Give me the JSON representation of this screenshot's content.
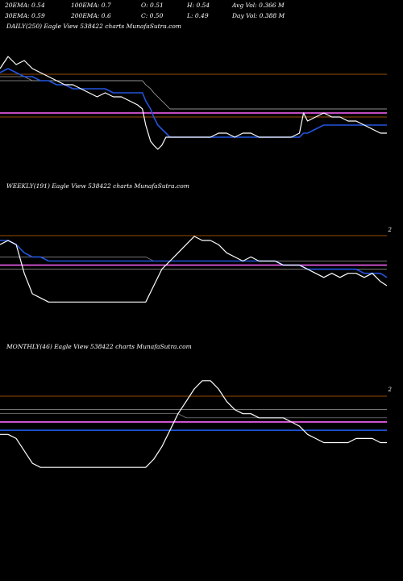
{
  "header": {
    "row1": [
      "20EMA: 0.54",
      "100EMA: 0.7",
      "O: 0.51",
      "H: 0.54",
      "Avg Vol: 0.366  M"
    ],
    "row2": [
      "30EMA: 0.59",
      "200EMA: 0.6",
      "C: 0.50",
      "L: 0.49",
      "Day Vol: 0.388  M"
    ]
  },
  "colors": {
    "price": "#ffffff",
    "ema_fast": "#2255dd",
    "ema_slow": "#ff66ff",
    "long_ema": "#cc6600",
    "aux_line": "#999999"
  },
  "chart_data": [
    {
      "type": "line",
      "title": "DAILY(250) Eagle  View  538422  charts MunafaSutra.com",
      "x": [
        0,
        10,
        20,
        30,
        40,
        50,
        60,
        70,
        80,
        90,
        100,
        110,
        120,
        130,
        140,
        150,
        160,
        170,
        176,
        180,
        186,
        190,
        195,
        200,
        205,
        210,
        220,
        230,
        240,
        250,
        260,
        270,
        280,
        290,
        300,
        310,
        320,
        330,
        340,
        350,
        360,
        370,
        375,
        380,
        390,
        400,
        410,
        420,
        430,
        440,
        450,
        460,
        470,
        478
      ],
      "series": [
        {
          "values": [
            0.66,
            0.69,
            0.67,
            0.68,
            0.66,
            0.65,
            0.64,
            0.63,
            0.62,
            0.62,
            0.61,
            0.6,
            0.59,
            0.6,
            0.59,
            0.59,
            0.58,
            0.57,
            0.56,
            0.52,
            0.48,
            0.47,
            0.46,
            0.47,
            0.49,
            0.49,
            0.49,
            0.49,
            0.49,
            0.49,
            0.49,
            0.5,
            0.5,
            0.49,
            0.5,
            0.5,
            0.49,
            0.49,
            0.49,
            0.49,
            0.49,
            0.5,
            0.55,
            0.53,
            0.54,
            0.55,
            0.54,
            0.54,
            0.53,
            0.53,
            0.52,
            0.51,
            0.5,
            0.5
          ]
        },
        {
          "values": [
            0.65,
            0.66,
            0.65,
            0.64,
            0.64,
            0.63,
            0.63,
            0.62,
            0.62,
            0.61,
            0.61,
            0.61,
            0.61,
            0.61,
            0.6,
            0.6,
            0.6,
            0.6,
            0.6,
            0.58,
            0.56,
            0.54,
            0.52,
            0.51,
            0.5,
            0.49,
            0.49,
            0.49,
            0.49,
            0.49,
            0.49,
            0.49,
            0.49,
            0.49,
            0.49,
            0.49,
            0.49,
            0.49,
            0.49,
            0.49,
            0.49,
            0.49,
            0.5,
            0.5,
            0.51,
            0.52,
            0.52,
            0.52,
            0.52,
            0.52,
            0.52,
            0.52,
            0.52,
            0.52
          ]
        },
        {
          "values": [
            0.64,
            0.64,
            0.64,
            0.64,
            0.63,
            0.63,
            0.63,
            0.63,
            0.63,
            0.63,
            0.63,
            0.63,
            0.63,
            0.63,
            0.63,
            0.63,
            0.63,
            0.63,
            0.63,
            0.62,
            0.61,
            0.6,
            0.59,
            0.58,
            0.57,
            0.56,
            0.56,
            0.56,
            0.56,
            0.56,
            0.56,
            0.56,
            0.56,
            0.56,
            0.56,
            0.56,
            0.56,
            0.56,
            0.56,
            0.56,
            0.56,
            0.56,
            0.56,
            0.56,
            0.56,
            0.56,
            0.56,
            0.56,
            0.56,
            0.56,
            0.56,
            0.56,
            0.56,
            0.56
          ]
        },
        {
          "values": [
            0.63,
            0.63,
            0.63,
            0.63,
            0.63,
            0.63,
            0.63,
            0.63,
            0.63,
            0.63,
            0.63,
            0.63,
            0.63,
            0.63,
            0.63,
            0.63,
            0.63,
            0.63,
            0.63,
            0.62,
            0.61,
            0.6,
            0.59,
            0.58,
            0.57,
            0.56,
            0.56,
            0.56,
            0.56,
            0.56,
            0.56,
            0.56,
            0.56,
            0.56,
            0.56,
            0.56,
            0.56,
            0.56,
            0.56,
            0.56,
            0.56,
            0.56,
            0.56,
            0.56,
            0.56,
            0.56,
            0.56,
            0.56,
            0.56,
            0.56,
            0.56,
            0.56,
            0.56,
            0.56
          ]
        },
        {
          "values": [
            0.55,
            0.55,
            0.55,
            0.55,
            0.55,
            0.55,
            0.55,
            0.55,
            0.55,
            0.55,
            0.55,
            0.55,
            0.55,
            0.55,
            0.55,
            0.55,
            0.55,
            0.55,
            0.55,
            0.55,
            0.55,
            0.55,
            0.55,
            0.55,
            0.55,
            0.55,
            0.55,
            0.55,
            0.55,
            0.55,
            0.55,
            0.55,
            0.55,
            0.55,
            0.55,
            0.55,
            0.55,
            0.55,
            0.55,
            0.55,
            0.55,
            0.55,
            0.55,
            0.55,
            0.55,
            0.55,
            0.55,
            0.55,
            0.55,
            0.55,
            0.55,
            0.55,
            0.55,
            0.55
          ]
        },
        {
          "values": [
            0.54,
            0.54,
            0.54,
            0.54,
            0.54,
            0.54,
            0.54,
            0.54,
            0.54,
            0.54,
            0.54,
            0.54,
            0.54,
            0.54,
            0.54,
            0.54,
            0.54,
            0.54,
            0.54,
            0.54,
            0.54,
            0.54,
            0.54,
            0.54,
            0.54,
            0.54,
            0.54,
            0.54,
            0.54,
            0.54,
            0.54,
            0.54,
            0.54,
            0.54,
            0.54,
            0.54,
            0.54,
            0.54,
            0.54,
            0.54,
            0.54,
            0.54,
            0.54,
            0.54,
            0.54,
            0.54,
            0.54,
            0.54,
            0.54,
            0.54,
            0.54,
            0.54,
            0.54,
            0.54
          ]
        }
      ],
      "ylim": [
        0.4,
        0.75
      ],
      "grid": false
    },
    {
      "type": "line",
      "title": "WEEKLY(191) Eagle  View  538422  charts MunafaSutra.com",
      "scale_label": "2",
      "x": [
        0,
        10,
        20,
        30,
        40,
        50,
        60,
        80,
        100,
        120,
        140,
        160,
        180,
        190,
        200,
        210,
        220,
        230,
        240,
        250,
        260,
        270,
        280,
        290,
        300,
        310,
        320,
        330,
        340,
        350,
        360,
        370,
        380,
        390,
        400,
        410,
        420,
        430,
        440,
        450,
        460,
        470,
        478
      ],
      "series": [
        {
          "values": [
            0.62,
            0.63,
            0.62,
            0.55,
            0.5,
            0.49,
            0.48,
            0.48,
            0.48,
            0.48,
            0.48,
            0.48,
            0.48,
            0.52,
            0.56,
            0.58,
            0.6,
            0.62,
            0.64,
            0.63,
            0.63,
            0.62,
            0.6,
            0.59,
            0.58,
            0.59,
            0.58,
            0.58,
            0.58,
            0.57,
            0.57,
            0.57,
            0.56,
            0.55,
            0.54,
            0.55,
            0.54,
            0.55,
            0.55,
            0.54,
            0.55,
            0.53,
            0.52
          ]
        },
        {
          "values": [
            0.63,
            0.63,
            0.62,
            0.6,
            0.59,
            0.59,
            0.58,
            0.58,
            0.58,
            0.58,
            0.58,
            0.58,
            0.58,
            0.58,
            0.58,
            0.58,
            0.58,
            0.58,
            0.58,
            0.58,
            0.58,
            0.58,
            0.58,
            0.58,
            0.58,
            0.58,
            0.58,
            0.58,
            0.58,
            0.57,
            0.57,
            0.57,
            0.56,
            0.56,
            0.56,
            0.56,
            0.56,
            0.56,
            0.56,
            0.55,
            0.55,
            0.55,
            0.54
          ]
        },
        {
          "values": [
            0.59,
            0.59,
            0.59,
            0.59,
            0.59,
            0.59,
            0.59,
            0.59,
            0.59,
            0.59,
            0.59,
            0.59,
            0.59,
            0.58,
            0.58,
            0.58,
            0.58,
            0.58,
            0.58,
            0.58,
            0.58,
            0.58,
            0.58,
            0.58,
            0.58,
            0.58,
            0.58,
            0.58,
            0.58,
            0.58,
            0.58,
            0.58,
            0.58,
            0.58,
            0.58,
            0.58,
            0.58,
            0.58,
            0.58,
            0.58,
            0.58,
            0.58,
            0.58
          ]
        },
        {
          "values": [
            0.56,
            0.56,
            0.56,
            0.56,
            0.56,
            0.56,
            0.56,
            0.56,
            0.56,
            0.56,
            0.56,
            0.56,
            0.56,
            0.56,
            0.56,
            0.56,
            0.56,
            0.56,
            0.56,
            0.56,
            0.56,
            0.56,
            0.56,
            0.56,
            0.56,
            0.56,
            0.56,
            0.56,
            0.56,
            0.56,
            0.56,
            0.56,
            0.56,
            0.56,
            0.56,
            0.56,
            0.56,
            0.56,
            0.56,
            0.56,
            0.56,
            0.56,
            0.56
          ]
        },
        {
          "values": [
            0.57,
            0.57,
            0.57,
            0.57,
            0.57,
            0.57,
            0.57,
            0.57,
            0.57,
            0.57,
            0.57,
            0.57,
            0.57,
            0.57,
            0.57,
            0.57,
            0.57,
            0.57,
            0.57,
            0.57,
            0.57,
            0.57,
            0.57,
            0.57,
            0.57,
            0.57,
            0.57,
            0.57,
            0.57,
            0.57,
            0.57,
            0.57,
            0.57,
            0.57,
            0.57,
            0.57,
            0.57,
            0.57,
            0.57,
            0.57,
            0.57,
            0.57,
            0.57
          ]
        }
      ],
      "ylim": [
        0.4,
        0.75
      ],
      "grid": false
    },
    {
      "type": "line",
      "title": "MONTHLY(46) Eagle  View  538422  charts MunafaSutra.com",
      "scale_label": "2",
      "x": [
        0,
        10,
        20,
        30,
        40,
        50,
        60,
        80,
        100,
        120,
        140,
        160,
        180,
        190,
        200,
        210,
        220,
        230,
        240,
        250,
        260,
        270,
        280,
        290,
        300,
        310,
        320,
        330,
        340,
        350,
        360,
        370,
        380,
        390,
        400,
        410,
        420,
        430,
        440,
        450,
        460,
        470,
        478
      ],
      "series": [
        {
          "values": [
            0.55,
            0.55,
            0.54,
            0.51,
            0.48,
            0.47,
            0.47,
            0.47,
            0.47,
            0.47,
            0.47,
            0.47,
            0.47,
            0.49,
            0.52,
            0.56,
            0.6,
            0.63,
            0.66,
            0.68,
            0.68,
            0.66,
            0.63,
            0.61,
            0.6,
            0.6,
            0.59,
            0.59,
            0.59,
            0.59,
            0.58,
            0.57,
            0.55,
            0.54,
            0.53,
            0.53,
            0.53,
            0.53,
            0.54,
            0.54,
            0.54,
            0.53,
            0.53
          ]
        },
        {
          "values": [
            0.56,
            0.56,
            0.56,
            0.56,
            0.56,
            0.56,
            0.56,
            0.56,
            0.56,
            0.56,
            0.56,
            0.56,
            0.56,
            0.56,
            0.56,
            0.56,
            0.56,
            0.56,
            0.56,
            0.56,
            0.56,
            0.56,
            0.56,
            0.56,
            0.56,
            0.56,
            0.56,
            0.56,
            0.56,
            0.56,
            0.56,
            0.56,
            0.56,
            0.56,
            0.56,
            0.56,
            0.56,
            0.56,
            0.56,
            0.56,
            0.56,
            0.56,
            0.56
          ]
        },
        {
          "values": [
            0.61,
            0.61,
            0.61,
            0.61,
            0.61,
            0.61,
            0.61,
            0.61,
            0.61,
            0.61,
            0.61,
            0.61,
            0.61,
            0.61,
            0.61,
            0.61,
            0.61,
            0.61,
            0.61,
            0.61,
            0.61,
            0.61,
            0.61,
            0.61,
            0.61,
            0.61,
            0.61,
            0.61,
            0.61,
            0.61,
            0.61,
            0.61,
            0.61,
            0.61,
            0.61,
            0.61,
            0.61,
            0.61,
            0.61,
            0.61,
            0.61,
            0.61,
            0.61
          ]
        },
        {
          "values": [
            0.6,
            0.6,
            0.6,
            0.6,
            0.6,
            0.6,
            0.6,
            0.6,
            0.6,
            0.6,
            0.6,
            0.6,
            0.6,
            0.6,
            0.6,
            0.6,
            0.6,
            0.59,
            0.59,
            0.59,
            0.59,
            0.59,
            0.59,
            0.59,
            0.59,
            0.59,
            0.59,
            0.59,
            0.59,
            0.59,
            0.59,
            0.59,
            0.59,
            0.59,
            0.59,
            0.59,
            0.59,
            0.59,
            0.59,
            0.59,
            0.59,
            0.59,
            0.59
          ]
        },
        {
          "values": [
            0.58,
            0.58,
            0.58,
            0.58,
            0.58,
            0.58,
            0.58,
            0.58,
            0.58,
            0.58,
            0.58,
            0.58,
            0.58,
            0.58,
            0.58,
            0.58,
            0.58,
            0.58,
            0.58,
            0.58,
            0.58,
            0.58,
            0.58,
            0.58,
            0.58,
            0.58,
            0.58,
            0.58,
            0.58,
            0.58,
            0.58,
            0.58,
            0.58,
            0.58,
            0.58,
            0.58,
            0.58,
            0.58,
            0.58,
            0.58,
            0.58,
            0.58,
            0.58
          ]
        }
      ],
      "ylim": [
        0.4,
        0.75
      ],
      "grid": false
    }
  ]
}
